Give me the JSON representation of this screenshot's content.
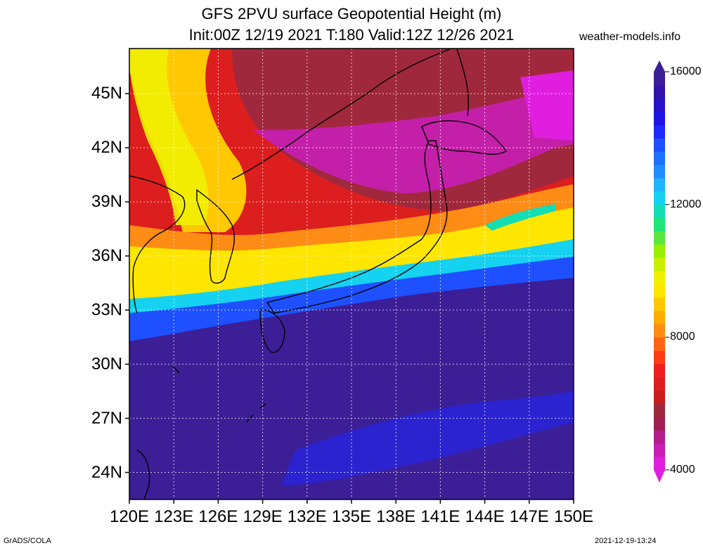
{
  "title": {
    "line1": "GFS 2PVU surface Geopotential Height (m)",
    "line2": "Init:00Z 12/19 2021 T:180 Valid:12Z 12/26 2021"
  },
  "credit": "weather-models.info",
  "footer": {
    "left": "GrADS/COLA",
    "right": "2021-12-19-13:24"
  },
  "map": {
    "region": "East Asia / Japan",
    "lon_range": [
      120,
      150
    ],
    "lat_range": [
      22.5,
      47.5
    ],
    "grid": true,
    "x_ticks": [
      {
        "value": 120,
        "label": "120E"
      },
      {
        "value": 123,
        "label": "123E"
      },
      {
        "value": 126,
        "label": "126E"
      },
      {
        "value": 129,
        "label": "129E"
      },
      {
        "value": 132,
        "label": "132E"
      },
      {
        "value": 135,
        "label": "135E"
      },
      {
        "value": 138,
        "label": "138E"
      },
      {
        "value": 141,
        "label": "141E"
      },
      {
        "value": 144,
        "label": "144E"
      },
      {
        "value": 147,
        "label": "147E"
      },
      {
        "value": 150,
        "label": "150E"
      }
    ],
    "y_ticks": [
      {
        "value": 45,
        "label": "45N"
      },
      {
        "value": 42,
        "label": "42N"
      },
      {
        "value": 39,
        "label": "39N"
      },
      {
        "value": 36,
        "label": "36N"
      },
      {
        "value": 33,
        "label": "33N"
      },
      {
        "value": 30,
        "label": "30N"
      },
      {
        "value": 27,
        "label": "27N"
      },
      {
        "value": 24,
        "label": "24N"
      }
    ]
  },
  "colorbar": {
    "min": 4000,
    "max": 16000,
    "labels": [
      {
        "value": 16000,
        "text": "16000"
      },
      {
        "value": 12000,
        "text": "12000"
      },
      {
        "value": 8000,
        "text": "8000"
      },
      {
        "value": 4000,
        "text": "4000"
      }
    ],
    "colors_bottom_to_top": [
      "#e01ee0",
      "#c81eb4",
      "#b41e8c",
      "#a01e50",
      "#a0283c",
      "#c81e1e",
      "#dc1e1e",
      "#f01e1e",
      "#ff3c14",
      "#ff6414",
      "#ff8c14",
      "#ffaa00",
      "#ffc800",
      "#ffe600",
      "#f0f000",
      "#c8f000",
      "#96f000",
      "#5ae63c",
      "#1ee678",
      "#14dcb4",
      "#14d2f0",
      "#1eb4ff",
      "#1e8cff",
      "#1e6eff",
      "#1e50ff",
      "#1e28ff",
      "#1e14e6",
      "#2814c8",
      "#3214aa",
      "#3c1e96"
    ]
  }
}
